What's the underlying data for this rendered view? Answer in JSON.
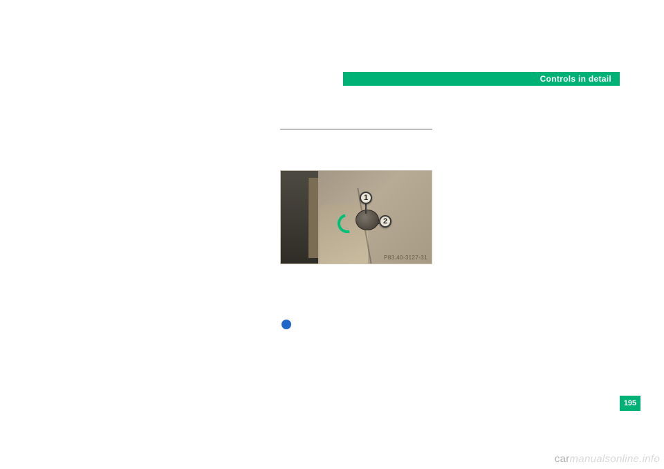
{
  "header": {
    "title": "Controls in detail"
  },
  "figure": {
    "partno": "P83.40-3127-31",
    "callouts": {
      "c1": "1",
      "c2": "2"
    },
    "colors": {
      "arrow": "#00c077",
      "body": "#b8ab96",
      "dash_left": "#2f2c26",
      "knob": "#3c372f"
    }
  },
  "page_number": "195",
  "watermark": {
    "prefix": "car",
    "rest": "manualsonline.info"
  },
  "theme": {
    "accent": "#00b176",
    "blue_dot": "#1f66c9",
    "divider": "#bcbcbc"
  }
}
